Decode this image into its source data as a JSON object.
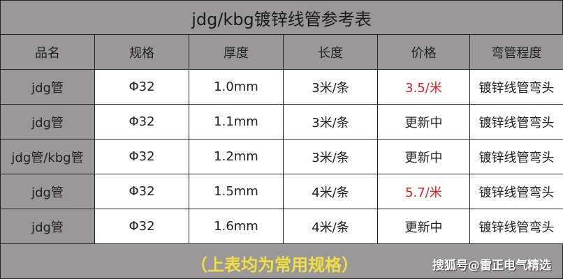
{
  "title": "jdg/kbg镀锌线管参考表",
  "headers": [
    "品名",
    "规格",
    "厚度",
    "长度",
    "价格",
    "弯管程度"
  ],
  "rows": [
    [
      "jdg管",
      "Φ32",
      "1.0mm",
      "3米/条",
      "3.5/米",
      "镀锌线管弯头"
    ],
    [
      "jdg管",
      "Φ32",
      "1.1mm",
      "3米/条",
      "更新中",
      "镀锌线管弯头"
    ],
    [
      "jdg管/kbg管",
      "Φ32",
      "1.2mm",
      "3米/条",
      "更新中",
      "镀锌线管弯头"
    ],
    [
      "jdg管",
      "Φ32",
      "1.5mm",
      "4米/条",
      "5.7/米",
      "镀锌线管弯头"
    ],
    [
      "jdg管",
      "Φ32",
      "1.6mm",
      "4米/条",
      "更新中",
      "镀锌线管弯头"
    ]
  ],
  "footer_note": "（上表均为常用规格）",
  "watermark": "搜狐号@雷正电气精选",
  "colors": {
    "header_bg": "#9c989a",
    "price_highlight": "#e02020",
    "note": "#f0e040"
  }
}
